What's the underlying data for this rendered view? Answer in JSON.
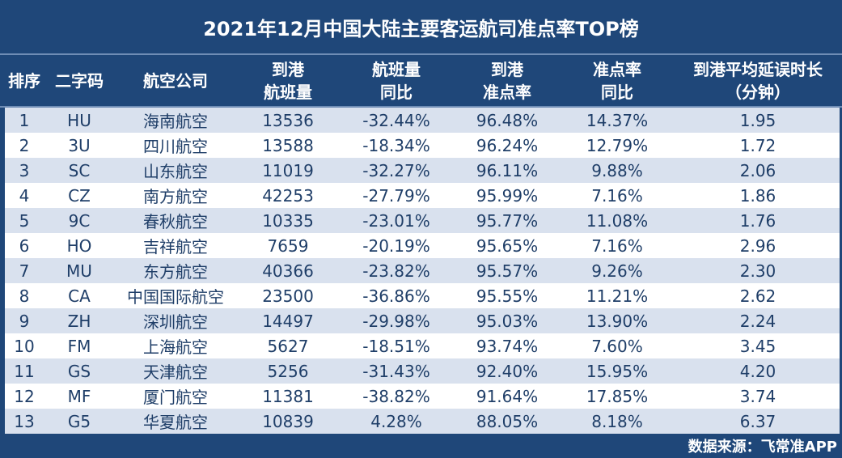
{
  "title": "2021年12月中国大陆主要客运航司准点率TOP榜",
  "source": "数据来源：飞常准APP",
  "colors": {
    "header_bg": "#1F4779",
    "row_alt": "#D9E1EE",
    "text": "#1F3E68"
  },
  "chart_data": {
    "type": "table",
    "title": "2021年12月中国大陆主要客运航司准点率TOP榜",
    "columns": [
      "排序",
      "二字码",
      "航空公司",
      "到港\n航班量",
      "航班量\n同比",
      "到港\n准点率",
      "准点率\n同比",
      "到港平均延误时长\n（分钟）"
    ],
    "rows": [
      [
        "1",
        "HU",
        "海南航空",
        "13536",
        "-32.44%",
        "96.48%",
        "14.37%",
        "1.95"
      ],
      [
        "2",
        "3U",
        "四川航空",
        "13588",
        "-18.34%",
        "96.24%",
        "12.79%",
        "1.72"
      ],
      [
        "3",
        "SC",
        "山东航空",
        "11019",
        "-32.27%",
        "96.11%",
        "9.88%",
        "2.06"
      ],
      [
        "4",
        "CZ",
        "南方航空",
        "42253",
        "-27.79%",
        "95.99%",
        "7.16%",
        "1.86"
      ],
      [
        "5",
        "9C",
        "春秋航空",
        "10335",
        "-23.01%",
        "95.77%",
        "11.08%",
        "1.76"
      ],
      [
        "6",
        "HO",
        "吉祥航空",
        "7659",
        "-20.19%",
        "95.65%",
        "7.16%",
        "2.96"
      ],
      [
        "7",
        "MU",
        "东方航空",
        "40366",
        "-23.82%",
        "95.57%",
        "9.26%",
        "2.30"
      ],
      [
        "8",
        "CA",
        "中国国际航空",
        "23500",
        "-36.86%",
        "95.55%",
        "11.21%",
        "2.62"
      ],
      [
        "9",
        "ZH",
        "深圳航空",
        "14497",
        "-29.98%",
        "95.03%",
        "13.90%",
        "2.24"
      ],
      [
        "10",
        "FM",
        "上海航空",
        "5627",
        "-18.51%",
        "93.74%",
        "7.60%",
        "3.45"
      ],
      [
        "11",
        "GS",
        "天津航空",
        "5256",
        "-31.43%",
        "92.40%",
        "15.95%",
        "4.20"
      ],
      [
        "12",
        "MF",
        "厦门航空",
        "11381",
        "-38.82%",
        "91.64%",
        "17.85%",
        "3.74"
      ],
      [
        "13",
        "G5",
        "华夏航空",
        "10839",
        "4.28%",
        "88.05%",
        "8.18%",
        "6.37"
      ]
    ]
  }
}
